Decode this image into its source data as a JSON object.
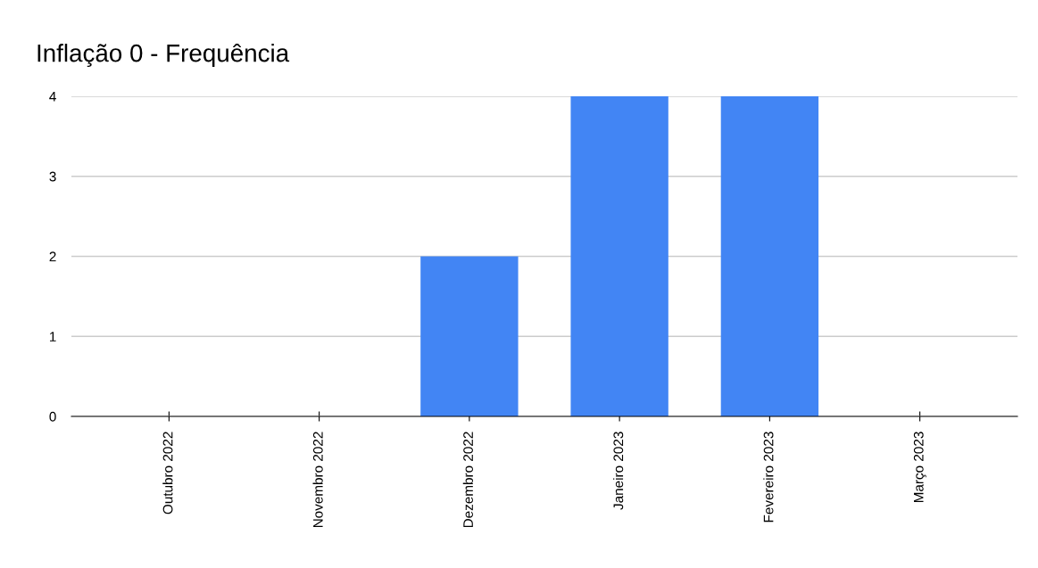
{
  "chart_data": {
    "type": "bar",
    "title": "Inflação 0 - Frequência",
    "categories": [
      "Outubro 2022",
      "Novembro 2022",
      "Dezembro 2022",
      "Janeiro 2023",
      "Fevereiro 2023",
      "Março 2023"
    ],
    "values": [
      0,
      0,
      2,
      4,
      4,
      0
    ],
    "color": "#4285f4",
    "ylim": [
      0,
      4
    ],
    "yticks": [
      0,
      1,
      2,
      3,
      4
    ],
    "grid": "y"
  }
}
